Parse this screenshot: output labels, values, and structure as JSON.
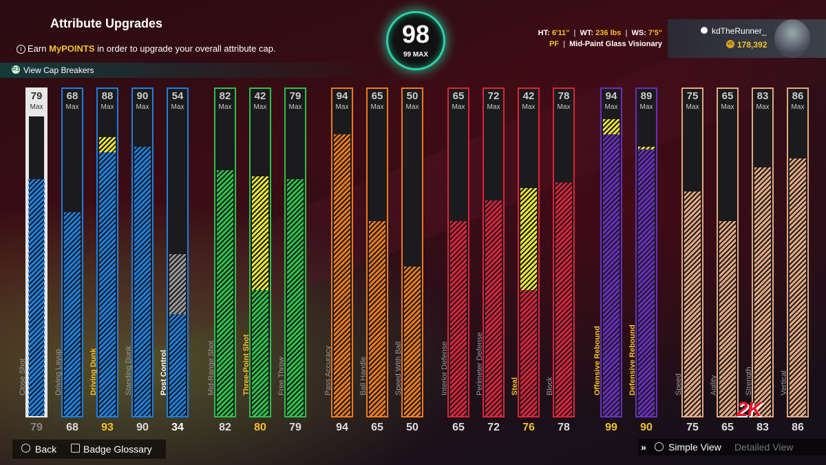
{
  "header": {
    "title": "Attribute Upgrades",
    "subtitle_pre": "Earn ",
    "subtitle_hl": "MyPOINTS",
    "subtitle_post": " in order to upgrade your overall attribute cap.",
    "cap_breakers": "View Cap Breakers"
  },
  "overall": {
    "value": "98",
    "max_label": "99 MAX"
  },
  "player": {
    "ht_label": "HT:",
    "ht": "6'11\"",
    "wt_label": "WT:",
    "wt": "236 lbs",
    "ws_label": "WS:",
    "ws": "7'5\"",
    "position": "PF",
    "archetype": "Mid-Paint Glass Visionary"
  },
  "user": {
    "name": "kdTheRunner_",
    "vc": "178,392"
  },
  "max_label": "Max",
  "colors": {
    "outside": "#d9d9d9",
    "inside": "#1e7fe0",
    "shooting": "#2ec24a",
    "playmaking": "#ef7a1e",
    "defense": "#e0223a",
    "rebounding": "#6a2dc0",
    "athleticism": "#e6a982",
    "upgrade": "#e8e836"
  },
  "attributes": [
    {
      "name": "Close Shot",
      "group": "outside",
      "cap": "79",
      "current": "79",
      "cur": 79,
      "max": 79,
      "up": 0,
      "lab": "g"
    },
    {
      "name": "Driving Layup",
      "group": "inside",
      "cap": "68",
      "current": "68",
      "cur": 68,
      "max": 68,
      "up": 0,
      "lab": "g"
    },
    {
      "name": "Driving Dunk",
      "group": "inside",
      "cap": "88",
      "current": "93",
      "cur": 88,
      "max": 93,
      "up": 5,
      "lab": "y"
    },
    {
      "name": "Standing Dunk",
      "group": "inside",
      "cap": "90",
      "current": "90",
      "cur": 90,
      "max": 90,
      "up": 0,
      "lab": "g"
    },
    {
      "name": "Post Control",
      "group": "inside",
      "cap": "54",
      "current": "34",
      "cur": 34,
      "max": 54,
      "up": 0,
      "lab": "w"
    },
    {
      "name": "Mid-Range Shot",
      "group": "shooting",
      "cap": "82",
      "current": "82",
      "cur": 82,
      "max": 82,
      "up": 0,
      "lab": "g"
    },
    {
      "name": "Three-Point Shot",
      "group": "shooting",
      "cap": "42",
      "current": "80",
      "cur": 42,
      "max": 80,
      "up": 38,
      "lab": "y"
    },
    {
      "name": "Free Throw",
      "group": "shooting",
      "cap": "79",
      "current": "79",
      "cur": 79,
      "max": 79,
      "up": 0,
      "lab": "g"
    },
    {
      "name": "Pass Accuracy",
      "group": "playmaking",
      "cap": "94",
      "current": "94",
      "cur": 94,
      "max": 94,
      "up": 0,
      "lab": "g"
    },
    {
      "name": "Ball Handle",
      "group": "playmaking",
      "cap": "65",
      "current": "65",
      "cur": 65,
      "max": 65,
      "up": 0,
      "lab": "g"
    },
    {
      "name": "Speed With Ball",
      "group": "playmaking",
      "cap": "50",
      "current": "50",
      "cur": 50,
      "max": 50,
      "up": 0,
      "lab": "g"
    },
    {
      "name": "Interior Defense",
      "group": "defense",
      "cap": "65",
      "current": "65",
      "cur": 65,
      "max": 65,
      "up": 0,
      "lab": "g"
    },
    {
      "name": "Perimeter Defense",
      "group": "defense",
      "cap": "72",
      "current": "72",
      "cur": 72,
      "max": 72,
      "up": 0,
      "lab": "g"
    },
    {
      "name": "Steal",
      "group": "defense",
      "cap": "42",
      "current": "76",
      "cur": 42,
      "max": 76,
      "up": 34,
      "lab": "y"
    },
    {
      "name": "Block",
      "group": "defense",
      "cap": "78",
      "current": "78",
      "cur": 78,
      "max": 78,
      "up": 0,
      "lab": "g"
    },
    {
      "name": "Offensive Rebound",
      "group": "rebounding",
      "cap": "94",
      "current": "99",
      "cur": 94,
      "max": 99,
      "up": 5,
      "lab": "y"
    },
    {
      "name": "Defensive Rebound",
      "group": "rebounding",
      "cap": "89",
      "current": "90",
      "cur": 89,
      "max": 90,
      "up": 1,
      "lab": "y"
    },
    {
      "name": "Speed",
      "group": "athleticism",
      "cap": "75",
      "current": "75",
      "cur": 75,
      "max": 75,
      "up": 0,
      "lab": "g"
    },
    {
      "name": "Agility",
      "group": "athleticism",
      "cap": "65",
      "current": "65",
      "cur": 65,
      "max": 65,
      "up": 0,
      "lab": "g"
    },
    {
      "name": "Strength",
      "group": "athleticism",
      "cap": "83",
      "current": "83",
      "cur": 83,
      "max": 83,
      "up": 0,
      "lab": "g"
    },
    {
      "name": "Vertical",
      "group": "athleticism",
      "cap": "86",
      "current": "86",
      "cur": 86,
      "max": 86,
      "up": 0,
      "lab": "g"
    }
  ],
  "footer": {
    "back": "Back",
    "badge_glossary": "Badge Glossary",
    "simple_view": "Simple View",
    "detailed_view": "Detailed View"
  },
  "logo": "2K"
}
